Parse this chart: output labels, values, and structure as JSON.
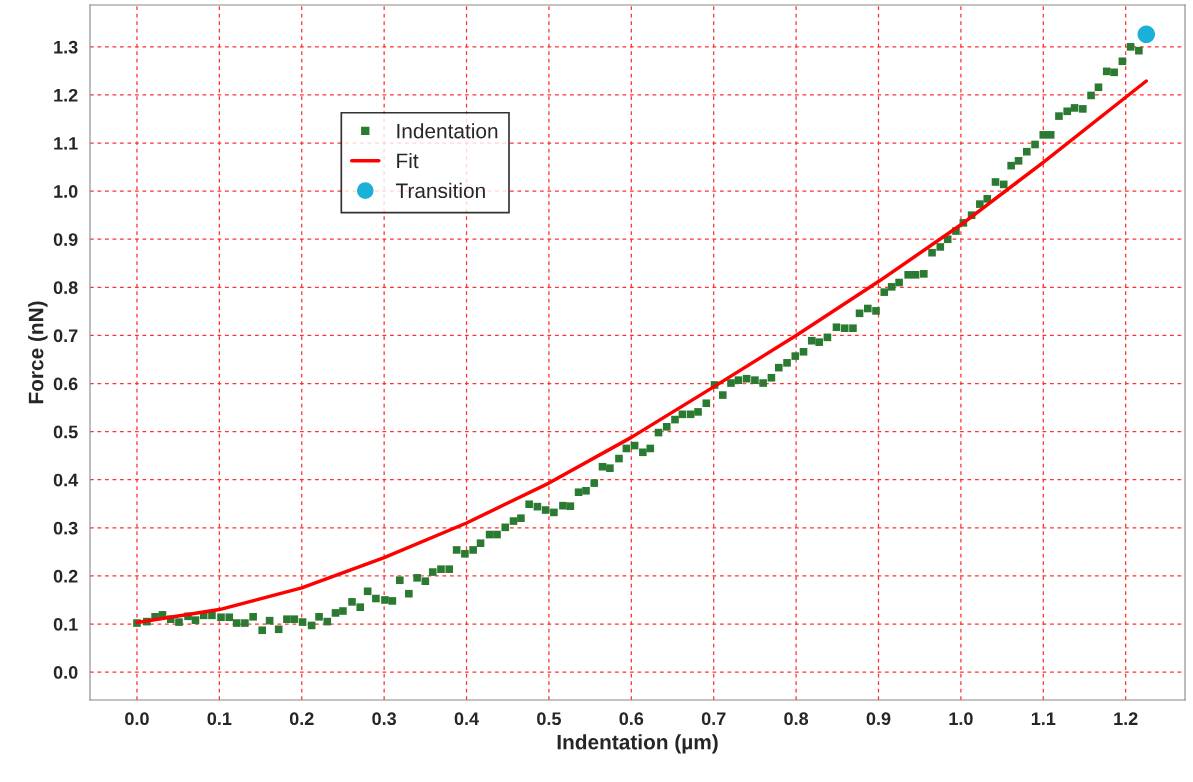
{
  "chart_data": {
    "type": "scatter",
    "xlabel": "Indentation (µm)",
    "ylabel": "Force (nN)",
    "xlim": [
      -0.057,
      1.272
    ],
    "ylim": [
      -0.058,
      1.387
    ],
    "xticks": [
      {
        "value": 0,
        "label": "0.0"
      },
      0.1,
      0.2,
      0.3,
      0.4,
      0.5,
      0.6,
      0.7,
      0.8,
      0.9,
      {
        "value": 1,
        "label": "1.0"
      },
      1.1,
      1.2
    ],
    "yticks": [
      {
        "value": 0,
        "label": "0.0"
      },
      0.1,
      0.2,
      0.3,
      0.4,
      0.5,
      0.6,
      0.7,
      0.8,
      0.9,
      {
        "value": 1,
        "label": "1.0"
      },
      1.1,
      1.2,
      1.3
    ],
    "grid": true,
    "legend": "top left",
    "series": [
      {
        "name": "Indentation",
        "marker": "square",
        "color": "#2a7a32",
        "x": [
          0.0,
          0.012,
          0.022,
          0.031,
          0.041,
          0.051,
          0.062,
          0.071,
          0.081,
          0.091,
          0.102,
          0.112,
          0.121,
          0.131,
          0.141,
          0.152,
          0.161,
          0.172,
          0.182,
          0.191,
          0.201,
          0.212,
          0.221,
          0.231,
          0.241,
          0.25,
          0.261,
          0.271,
          0.28,
          0.29,
          0.301,
          0.31,
          0.319,
          0.33,
          0.34,
          0.35,
          0.359,
          0.369,
          0.379,
          0.388,
          0.398,
          0.408,
          0.417,
          0.428,
          0.437,
          0.447,
          0.457,
          0.466,
          0.476,
          0.486,
          0.496,
          0.506,
          0.517,
          0.526,
          0.536,
          0.545,
          0.555,
          0.565,
          0.574,
          0.585,
          0.594,
          0.604,
          0.614,
          0.623,
          0.633,
          0.643,
          0.653,
          0.662,
          0.672,
          0.681,
          0.691,
          0.701,
          0.711,
          0.721,
          0.73,
          0.74,
          0.75,
          0.76,
          0.77,
          0.779,
          0.789,
          0.799,
          0.809,
          0.819,
          0.828,
          0.838,
          0.849,
          0.859,
          0.869,
          0.877,
          0.887,
          0.897,
          0.907,
          0.916,
          0.925,
          0.936,
          0.945,
          0.955,
          0.965,
          0.975,
          0.984,
          0.994,
          1.003,
          1.013,
          1.023,
          1.032,
          1.042,
          1.052,
          1.061,
          1.07,
          1.08,
          1.09,
          1.1,
          1.109,
          1.119,
          1.129,
          1.138,
          1.148,
          1.158,
          1.167,
          1.177,
          1.186,
          1.196,
          1.206,
          1.216
        ],
        "values": [
          0.102,
          0.105,
          0.115,
          0.119,
          0.11,
          0.104,
          0.116,
          0.108,
          0.118,
          0.118,
          0.114,
          0.114,
          0.102,
          0.102,
          0.115,
          0.087,
          0.107,
          0.089,
          0.11,
          0.11,
          0.104,
          0.097,
          0.115,
          0.105,
          0.123,
          0.127,
          0.146,
          0.135,
          0.168,
          0.153,
          0.15,
          0.148,
          0.191,
          0.163,
          0.196,
          0.189,
          0.208,
          0.214,
          0.214,
          0.254,
          0.246,
          0.254,
          0.268,
          0.286,
          0.286,
          0.301,
          0.314,
          0.32,
          0.349,
          0.344,
          0.337,
          0.332,
          0.346,
          0.345,
          0.374,
          0.377,
          0.393,
          0.427,
          0.424,
          0.444,
          0.465,
          0.471,
          0.457,
          0.465,
          0.498,
          0.51,
          0.525,
          0.536,
          0.536,
          0.541,
          0.559,
          0.597,
          0.576,
          0.601,
          0.607,
          0.61,
          0.607,
          0.601,
          0.612,
          0.633,
          0.643,
          0.657,
          0.666,
          0.689,
          0.686,
          0.696,
          0.717,
          0.715,
          0.715,
          0.746,
          0.756,
          0.751,
          0.79,
          0.801,
          0.81,
          0.826,
          0.826,
          0.828,
          0.872,
          0.884,
          0.9,
          0.917,
          0.934,
          0.95,
          0.973,
          0.984,
          1.019,
          1.014,
          1.053,
          1.063,
          1.082,
          1.097,
          1.117,
          1.117,
          1.156,
          1.166,
          1.173,
          1.171,
          1.199,
          1.216,
          1.249,
          1.247,
          1.27,
          1.3,
          1.292
        ]
      },
      {
        "name": "Fit",
        "type": "line",
        "line_style": "solid",
        "color": "#ff0000",
        "x": [
          0.0,
          0.1,
          0.2,
          0.3,
          0.4,
          0.5,
          0.6,
          0.7,
          0.8,
          0.9,
          1.0,
          1.1,
          1.225
        ],
        "values": [
          0.103,
          0.13,
          0.175,
          0.238,
          0.31,
          0.393,
          0.488,
          0.593,
          0.7,
          0.812,
          0.93,
          1.06,
          1.229
        ]
      },
      {
        "name": "Transition",
        "marker": "circle",
        "color": "#1ab0d8",
        "x": [
          1.225
        ],
        "values": [
          1.326
        ]
      }
    ]
  }
}
